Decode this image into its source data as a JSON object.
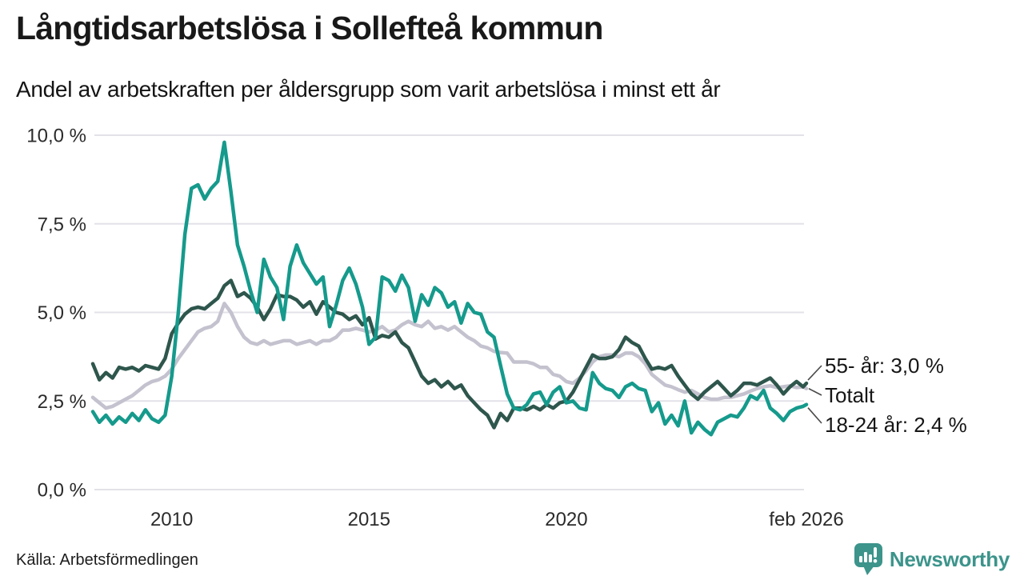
{
  "header": {
    "title": "Långtidsarbetslösa i Sollefteå kommun",
    "subtitle": "Andel av arbetskraften per åldersgrupp som varit arbetslösa i minst ett år"
  },
  "chart_data": {
    "type": "line",
    "title": "Långtidsarbetslösa i Sollefteå kommun",
    "subtitle": "Andel av arbetskraften per åldersgrupp som varit arbetslösa i minst ett år",
    "unit": "% av arbetskraften",
    "x_start_year": 2008,
    "x_step_years": 0.16667,
    "x_end_year": 2026.083,
    "x_end_label": "feb 2026",
    "ylim": [
      0,
      10
    ],
    "grid": "horizontal",
    "grid_color": "#e3e2e8",
    "y_axis_ticks": [
      {
        "label": "0,0 %",
        "value": 0
      },
      {
        "label": "2,5 %",
        "value": 2.5
      },
      {
        "label": "5,0 %",
        "value": 5
      },
      {
        "label": "7,5 %",
        "value": 7.5
      },
      {
        "label": "10,0 %",
        "value": 10
      }
    ],
    "x_axis_ticks": [
      {
        "label": "2010",
        "year": 2010
      },
      {
        "label": "2015",
        "year": 2015
      },
      {
        "label": "2020",
        "year": 2020
      },
      {
        "label": "feb 2026",
        "year": 2026.083
      }
    ],
    "series": [
      {
        "name": "Totalt",
        "end_label": "Totalt",
        "color": "#c4c2ce",
        "values": [
          2.6,
          2.45,
          2.3,
          2.35,
          2.45,
          2.55,
          2.65,
          2.8,
          2.95,
          3.05,
          3.1,
          3.2,
          3.4,
          3.7,
          3.95,
          4.2,
          4.45,
          4.55,
          4.6,
          4.75,
          5.25,
          5.0,
          4.6,
          4.3,
          4.15,
          4.1,
          4.2,
          4.1,
          4.15,
          4.2,
          4.2,
          4.1,
          4.15,
          4.2,
          4.1,
          4.2,
          4.2,
          4.3,
          4.5,
          4.5,
          4.55,
          4.5,
          4.45,
          4.5,
          4.6,
          4.45,
          4.5,
          4.65,
          4.75,
          4.65,
          4.6,
          4.75,
          4.55,
          4.6,
          4.5,
          4.6,
          4.45,
          4.3,
          4.2,
          4.05,
          4.0,
          3.9,
          3.87,
          3.85,
          3.6,
          3.6,
          3.6,
          3.55,
          3.45,
          3.45,
          3.25,
          3.2,
          3.05,
          3.0,
          3.15,
          3.35,
          3.6,
          3.75,
          3.8,
          3.8,
          3.75,
          3.85,
          3.85,
          3.75,
          3.55,
          3.25,
          3.1,
          2.95,
          2.9,
          2.82,
          2.75,
          2.8,
          2.7,
          2.6,
          2.55,
          2.55,
          2.6,
          2.6,
          2.65,
          2.7,
          2.78,
          2.85,
          2.9,
          2.93,
          2.88,
          2.9,
          2.93,
          2.88,
          2.9,
          2.85
        ]
      },
      {
        "name": "55- år",
        "end_label": "55- år: 3,0 %",
        "end_value": 3.0,
        "color": "#2e564c",
        "values": [
          3.55,
          3.1,
          3.3,
          3.15,
          3.45,
          3.4,
          3.45,
          3.35,
          3.5,
          3.45,
          3.4,
          3.7,
          4.4,
          4.7,
          4.95,
          5.1,
          5.15,
          5.1,
          5.25,
          5.4,
          5.75,
          5.9,
          5.45,
          5.55,
          5.4,
          5.15,
          4.8,
          5.1,
          5.5,
          5.45,
          5.45,
          5.35,
          5.15,
          5.3,
          4.95,
          5.3,
          5.15,
          5.0,
          4.95,
          4.8,
          4.9,
          4.65,
          4.85,
          4.25,
          4.35,
          4.3,
          4.45,
          4.15,
          4.0,
          3.6,
          3.2,
          3.0,
          3.1,
          2.9,
          3.05,
          2.85,
          2.95,
          2.65,
          2.45,
          2.25,
          2.1,
          1.75,
          2.15,
          1.95,
          2.3,
          2.3,
          2.25,
          2.35,
          2.25,
          2.4,
          2.3,
          2.45,
          2.5,
          2.75,
          3.1,
          3.45,
          3.8,
          3.7,
          3.7,
          3.75,
          3.95,
          4.3,
          4.15,
          4.05,
          3.7,
          3.4,
          3.45,
          3.4,
          3.5,
          3.2,
          2.95,
          2.7,
          2.55,
          2.75,
          2.9,
          3.05,
          2.85,
          2.65,
          2.8,
          3.0,
          3.0,
          2.95,
          3.05,
          3.15,
          2.95,
          2.7,
          2.9,
          3.05,
          2.9,
          3.0
        ]
      },
      {
        "name": "18-24 år",
        "end_label": "18-24 år: 2,4 %",
        "end_value": 2.4,
        "color": "#159a8c",
        "values": [
          2.2,
          1.9,
          2.1,
          1.85,
          2.05,
          1.9,
          2.15,
          1.95,
          2.25,
          2.0,
          1.9,
          2.1,
          3.2,
          5.0,
          7.2,
          8.5,
          8.6,
          8.2,
          8.5,
          8.7,
          9.8,
          8.4,
          6.9,
          6.3,
          5.6,
          5.0,
          6.5,
          6.0,
          5.7,
          4.8,
          6.3,
          6.9,
          6.4,
          6.1,
          5.8,
          6.0,
          4.6,
          5.2,
          5.9,
          6.25,
          5.8,
          5.15,
          4.1,
          4.3,
          6.0,
          5.9,
          5.6,
          6.05,
          5.7,
          4.75,
          5.5,
          5.2,
          5.7,
          5.55,
          5.15,
          5.3,
          4.7,
          5.25,
          5.0,
          4.95,
          4.45,
          4.3,
          3.5,
          2.7,
          2.3,
          2.25,
          2.4,
          2.7,
          2.75,
          2.4,
          2.75,
          2.9,
          2.45,
          2.5,
          2.3,
          2.25,
          3.3,
          3.0,
          2.85,
          2.8,
          2.6,
          2.9,
          3.0,
          2.85,
          2.8,
          2.2,
          2.45,
          1.85,
          2.1,
          1.8,
          2.5,
          1.6,
          1.9,
          1.7,
          1.55,
          1.9,
          2.0,
          2.1,
          2.05,
          2.3,
          2.65,
          2.55,
          2.8,
          2.3,
          2.15,
          1.95,
          2.2,
          2.3,
          2.35,
          2.4
        ]
      }
    ]
  },
  "footer": {
    "source": "Källa: Arbetsförmedlingen",
    "brand": "Newsworthy",
    "brand_color": "#3c948b",
    "logo_icon": "newsworthy-speech-bubble-bar-chart-icon"
  }
}
